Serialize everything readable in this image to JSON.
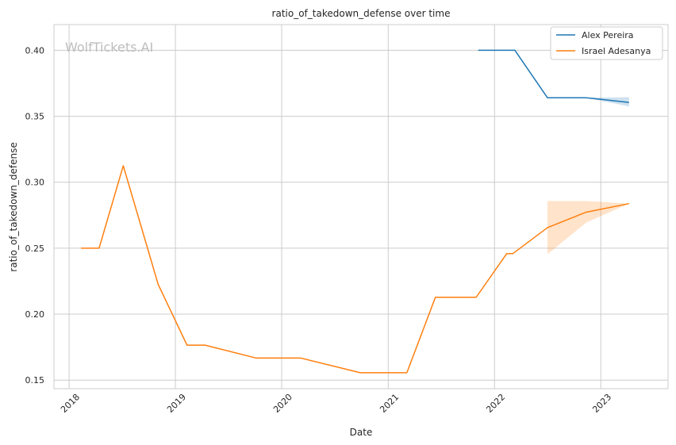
{
  "chart_data": {
    "type": "line",
    "title": "ratio_of_takedown_defense over time",
    "xlabel": "Date",
    "ylabel": "ratio_of_takedown_defense",
    "watermark": "WolfTickets.AI",
    "xlim": [
      "2017-11-10",
      "2023-08-20"
    ],
    "ylim": [
      0.1435,
      0.4195
    ],
    "x_ticks": [
      {
        "date": "2018-01-01",
        "label": "2018"
      },
      {
        "date": "2019-01-01",
        "label": "2019"
      },
      {
        "date": "2020-01-01",
        "label": "2020"
      },
      {
        "date": "2021-01-01",
        "label": "2021"
      },
      {
        "date": "2022-01-01",
        "label": "2022"
      },
      {
        "date": "2023-01-01",
        "label": "2023"
      }
    ],
    "y_ticks": [
      {
        "value": 0.15,
        "label": "0.15"
      },
      {
        "value": 0.2,
        "label": "0.20"
      },
      {
        "value": 0.25,
        "label": "0.25"
      },
      {
        "value": 0.3,
        "label": "0.30"
      },
      {
        "value": 0.35,
        "label": "0.35"
      },
      {
        "value": 0.4,
        "label": "0.40"
      }
    ],
    "grid": true,
    "legend_position": "top-right",
    "series": [
      {
        "name": "Alex Pereira",
        "color": "#1f77b4",
        "points": [
          [
            "2021-11-06",
            0.4
          ],
          [
            "2022-03-12",
            0.4
          ],
          [
            "2022-07-02",
            0.364
          ],
          [
            "2022-11-12",
            0.364
          ],
          [
            "2023-04-08",
            0.3605
          ]
        ],
        "band": [
          [
            "2022-11-12",
            0.364,
            0.364
          ],
          [
            "2023-04-08",
            0.3575,
            0.3645
          ]
        ]
      },
      {
        "name": "Israel Adesanya",
        "color": "#ff7f0e",
        "points": [
          [
            "2018-02-11",
            0.25
          ],
          [
            "2018-04-14",
            0.25
          ],
          [
            "2018-07-06",
            0.3125
          ],
          [
            "2018-11-03",
            0.2225
          ],
          [
            "2019-02-10",
            0.1765
          ],
          [
            "2019-04-13",
            0.1765
          ],
          [
            "2019-10-06",
            0.1667
          ],
          [
            "2020-03-07",
            0.1667
          ],
          [
            "2020-09-27",
            0.1556
          ],
          [
            "2021-03-06",
            0.1556
          ],
          [
            "2021-06-12",
            0.2128
          ],
          [
            "2021-10-30",
            0.2128
          ],
          [
            "2022-02-12",
            0.2459
          ],
          [
            "2022-03-05",
            0.2459
          ],
          [
            "2022-07-02",
            0.2656
          ],
          [
            "2022-11-12",
            0.2773
          ],
          [
            "2023-04-08",
            0.2838
          ]
        ],
        "band": [
          [
            "2022-07-02",
            0.2455,
            0.2857
          ],
          [
            "2022-11-12",
            0.2695,
            0.2857
          ],
          [
            "2023-04-08",
            0.2838,
            0.2838
          ]
        ]
      }
    ]
  }
}
